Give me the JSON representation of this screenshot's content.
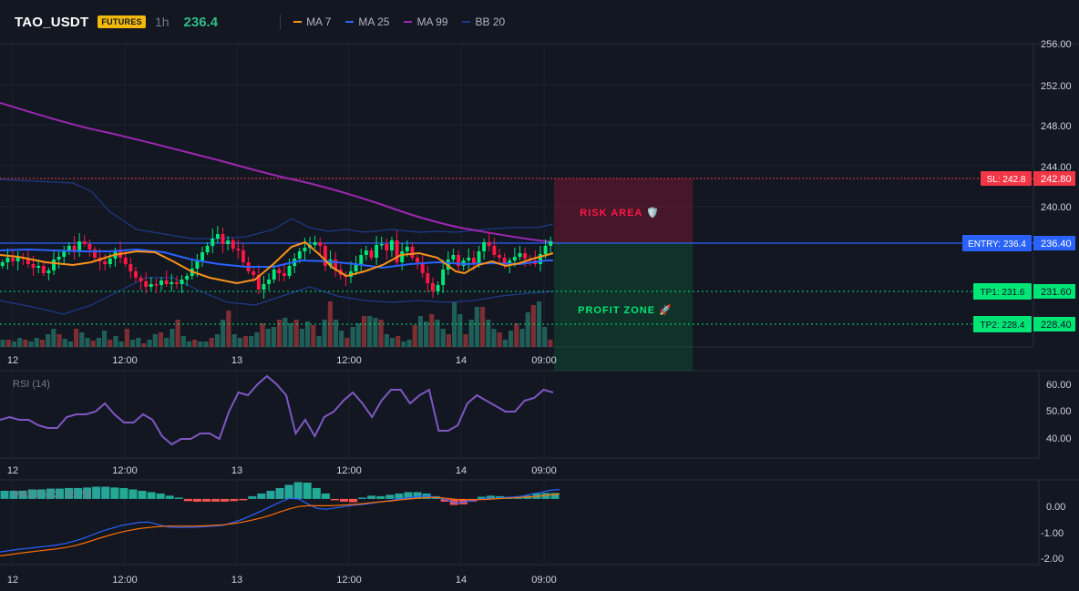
{
  "header": {
    "symbol": "TAO_USDT",
    "badge": "FUTURES",
    "interval": "1h",
    "price": "236.4",
    "legend": [
      {
        "label": "MA 7",
        "color": "#f7931a"
      },
      {
        "label": "MA 25",
        "color": "#2962ff"
      },
      {
        "label": "MA 99",
        "color": "#9c27b0"
      },
      {
        "label": "BB 20",
        "color": "#1e3a8a"
      }
    ]
  },
  "colors": {
    "up": "#26a69a",
    "up_bright": "#00e676",
    "down": "#ef5350",
    "down_bright": "#ff1744",
    "sl": "#f23645",
    "entry": "#2962ff",
    "tp": "#00e676"
  },
  "x_labels": [
    "12",
    "12:00",
    "13",
    "12:00",
    "14",
    "09:00"
  ],
  "price_axis": {
    "ticks": [
      "256.00",
      "252.00",
      "248.00",
      "244.00",
      "240.00",
      "236.40",
      "231.60",
      "228.40"
    ],
    "min": 224.5,
    "max": 256
  },
  "levels": {
    "sl": {
      "label": "SL: 242.8",
      "value_label": "242.80",
      "price": 242.8
    },
    "entry": {
      "label": "ENTRY: 236.4",
      "value_label": "236.40",
      "price": 236.4
    },
    "tp1": {
      "label": "TP1: 231.6",
      "value_label": "231.60",
      "price": 231.6
    },
    "tp2": {
      "label": "TP2: 228.4",
      "value_label": "228.40",
      "price": 228.4
    }
  },
  "zones": {
    "risk": "RISK AREA 🛡️",
    "profit": "PROFIT ZONE 🚀"
  },
  "rsi": {
    "title": "RSI (14)",
    "ticks": [
      "60.00",
      "50.00",
      "40.00"
    ],
    "min": 33,
    "max": 63,
    "values": [
      46,
      47,
      46,
      46,
      44,
      43,
      43,
      47,
      48,
      48,
      49,
      52,
      48,
      45,
      45,
      48,
      46,
      40,
      37,
      39,
      39,
      41,
      41,
      39,
      49,
      56,
      55,
      59,
      62,
      59,
      55,
      41,
      46,
      40,
      47,
      49,
      53,
      56,
      52,
      47,
      53,
      57,
      57,
      52,
      55,
      57,
      42,
      42,
      44,
      52,
      55,
      53,
      51,
      49,
      49,
      53,
      54,
      57,
      56
    ]
  },
  "macd": {
    "title": "MACD (12, 26, 9)",
    "ticks": [
      "0.00",
      "-1.00",
      "-2.00"
    ],
    "min": -2.35,
    "max": 0.6,
    "histogram": [
      0.3,
      0.3,
      0.3,
      0.35,
      0.35,
      0.38,
      0.38,
      0.4,
      0.4,
      0.42,
      0.45,
      0.45,
      0.42,
      0.4,
      0.35,
      0.3,
      0.25,
      0.2,
      0.12,
      0.05,
      -0.08,
      -0.1,
      -0.1,
      -0.1,
      -0.1,
      -0.08,
      -0.05,
      0.1,
      0.2,
      0.3,
      0.4,
      0.52,
      0.62,
      0.6,
      0.4,
      0.2,
      -0.05,
      -0.1,
      -0.12,
      0.05,
      0.12,
      0.1,
      0.15,
      0.2,
      0.25,
      0.25,
      0.2,
      0.1,
      -0.1,
      -0.22,
      -0.2,
      -0.1,
      0.08,
      0.12,
      0.1,
      0.08,
      0.05,
      0.12,
      0.2,
      0.22,
      0.22
    ],
    "macd_line": [
      -1.95,
      -1.9,
      -1.85,
      -1.82,
      -1.78,
      -1.74,
      -1.7,
      -1.64,
      -1.55,
      -1.44,
      -1.31,
      -1.18,
      -1.08,
      -0.98,
      -0.92,
      -0.86,
      -0.85,
      -0.95,
      -1.03,
      -1.05,
      -1.05,
      -1.04,
      -1.02,
      -1.0,
      -0.97,
      -0.86,
      -0.75,
      -0.6,
      -0.45,
      -0.28,
      -0.12,
      0.02,
      0.0,
      -0.18,
      -0.35,
      -0.38,
      -0.33,
      -0.28,
      -0.22,
      -0.2,
      -0.15,
      -0.1,
      -0.05,
      0.0,
      0.05,
      0.1,
      0.1,
      0.05,
      -0.05,
      -0.15,
      -0.1,
      -0.05,
      0.02,
      0.02,
      0.05,
      0.07,
      0.1,
      0.18,
      0.24,
      0.32,
      0.35
    ],
    "signal_line": [
      -2.1,
      -2.05,
      -2.0,
      -1.96,
      -1.92,
      -1.88,
      -1.84,
      -1.79,
      -1.72,
      -1.63,
      -1.52,
      -1.41,
      -1.31,
      -1.22,
      -1.15,
      -1.09,
      -1.05,
      -1.02,
      -1.0,
      -1.0,
      -1.0,
      -1.0,
      -0.99,
      -0.97,
      -0.95,
      -0.91,
      -0.85,
      -0.78,
      -0.7,
      -0.6,
      -0.48,
      -0.37,
      -0.28,
      -0.25,
      -0.25,
      -0.25,
      -0.24,
      -0.22,
      -0.2,
      -0.17,
      -0.13,
      -0.1,
      -0.07,
      -0.03,
      0.0,
      0.03,
      0.05,
      0.05,
      0.02,
      -0.02,
      -0.03,
      -0.03,
      -0.02,
      0.0,
      0.02,
      0.04,
      0.06,
      0.08,
      0.11,
      0.15,
      0.18
    ]
  }
}
